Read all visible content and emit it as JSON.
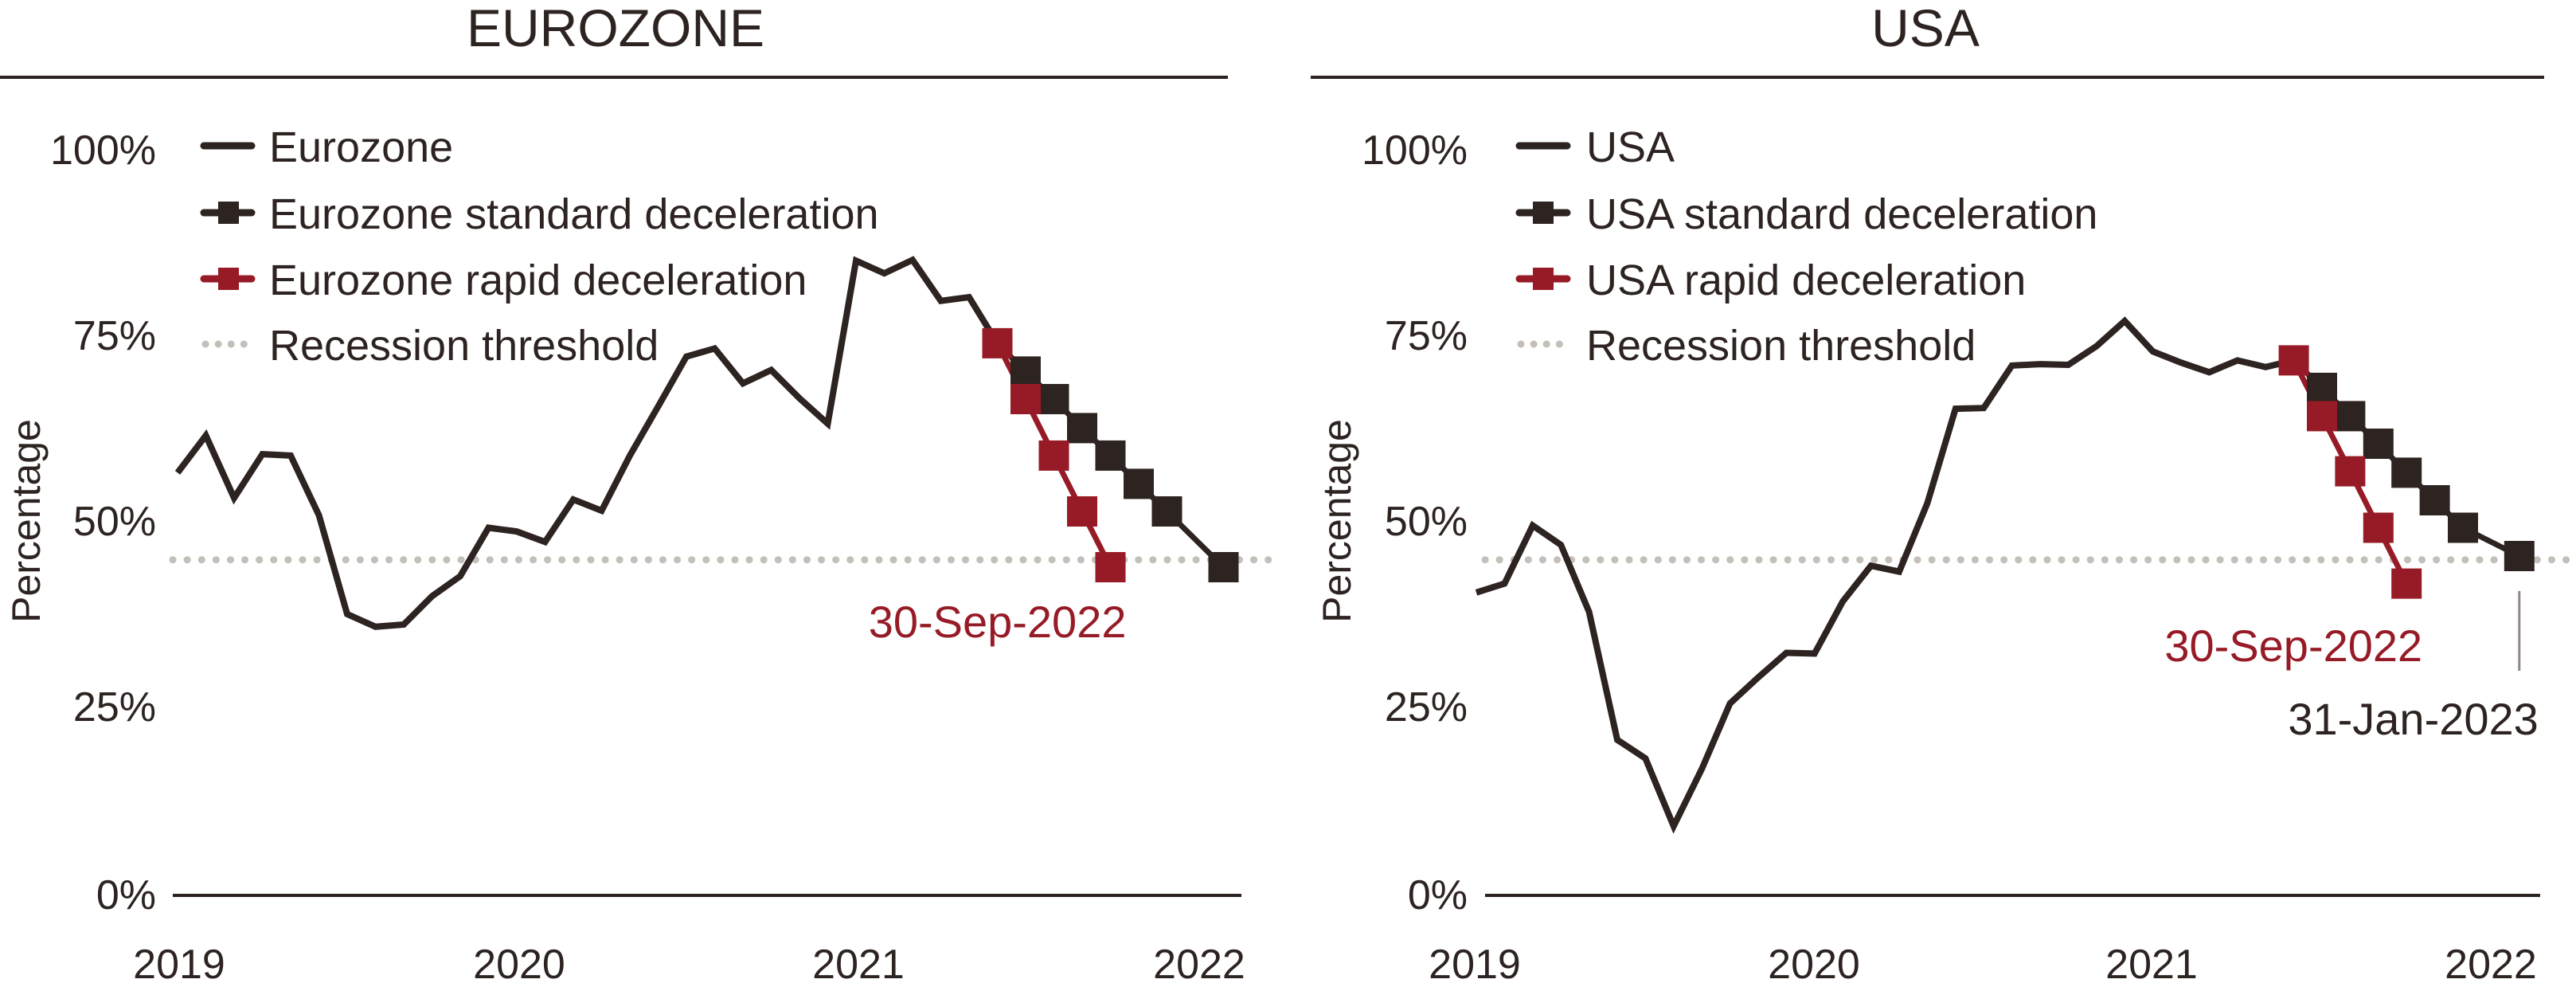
{
  "colors": {
    "line": "#2d2321",
    "rapid": "#971b26",
    "standard": "#2d2321",
    "threshold": "#c4bfb8",
    "text": "#2d2321"
  },
  "chart_data": [
    {
      "type": "line",
      "title": "EUROZONE",
      "xlabel": "",
      "ylabel": "Percentage",
      "ylim": [
        0,
        100
      ],
      "yticks": [
        "0%",
        "25%",
        "50%",
        "75%",
        "100%"
      ],
      "ytick_values": [
        0,
        25,
        50,
        75,
        100
      ],
      "xticks": [
        "2019",
        "2020",
        "2021",
        "2022"
      ],
      "x_unit": "month index (0 = first month at 2019 tick, 12 months per year tick)",
      "xlim": [
        0,
        38
      ],
      "grid": false,
      "legend_position": "top-left",
      "legend": [
        "Eurozone",
        "Eurozone standard deceleration",
        "Eurozone rapid deceleration",
        "Recession threshold"
      ],
      "threshold": 45,
      "series": [
        {
          "name": "Eurozone",
          "style": "line",
          "x": [
            0,
            1,
            2,
            3,
            4,
            5,
            6,
            7,
            8,
            9,
            10,
            11,
            12,
            13,
            14,
            15,
            16,
            17,
            18,
            19,
            20,
            21,
            22,
            23,
            24,
            25,
            26,
            27,
            28,
            29
          ],
          "values": [
            56.7,
            61.7,
            53.3,
            59.2,
            59.0,
            51.0,
            37.7,
            36.0,
            36.3,
            40.1,
            42.8,
            49.3,
            48.8,
            47.4,
            53.1,
            51.6,
            59.0,
            65.6,
            72.3,
            73.4,
            68.7,
            70.5,
            66.7,
            63.3,
            85.2,
            83.5,
            85.3,
            79.8,
            80.3,
            74.1
          ]
        },
        {
          "name": "Eurozone standard deceleration",
          "style": "line-square",
          "x": [
            29,
            30,
            31,
            32,
            33,
            34,
            35,
            37
          ],
          "values": [
            74.1,
            70.3,
            66.6,
            62.7,
            59.0,
            55.2,
            51.5,
            44.0
          ],
          "markers_at": [
            30,
            31,
            32,
            33,
            34,
            35,
            37
          ]
        },
        {
          "name": "Eurozone rapid deceleration",
          "style": "line-square",
          "x": [
            29,
            30,
            31,
            32,
            33
          ],
          "values": [
            74.1,
            66.6,
            59.0,
            51.5,
            44.0
          ],
          "markers_at": [
            29,
            30,
            31,
            32,
            33
          ]
        }
      ],
      "annotations": [
        {
          "text": "30-Sep-2022",
          "color": "rapid",
          "x": 33
        }
      ]
    },
    {
      "type": "line",
      "title": "USA",
      "xlabel": "",
      "ylabel": "Percentage",
      "ylim": [
        0,
        100
      ],
      "yticks": [
        "0%",
        "25%",
        "50%",
        "75%",
        "100%"
      ],
      "ytick_values": [
        0,
        25,
        50,
        75,
        100
      ],
      "xticks": [
        "2019",
        "2020",
        "2021",
        "2022"
      ],
      "x_unit": "month index (0 = first month at 2019 tick, 12 months per year tick)",
      "xlim": [
        0,
        38
      ],
      "grid": false,
      "legend_position": "top-left",
      "legend": [
        "USA",
        "USA standard deceleration",
        "USA rapid deceleration",
        "Recession threshold"
      ],
      "threshold": 45,
      "series": [
        {
          "name": "USA",
          "style": "line",
          "x": [
            0,
            1,
            2,
            3,
            4,
            5,
            6,
            7,
            8,
            9,
            10,
            11,
            12,
            13,
            14,
            15,
            16,
            17,
            18,
            19,
            20,
            21,
            22,
            23,
            24,
            25,
            26,
            27,
            28,
            29
          ],
          "values": [
            40.6,
            41.8,
            49.6,
            47.0,
            38.0,
            20.8,
            18.3,
            9.2,
            16.9,
            25.7,
            29.2,
            32.5,
            32.4,
            39.4,
            44.2,
            43.4,
            52.6,
            65.3,
            65.4,
            71.1,
            71.3,
            71.2,
            73.7,
            77.1,
            73.0,
            71.5,
            70.2,
            71.8,
            70.9,
            71.8
          ]
        },
        {
          "name": "USA standard deceleration",
          "style": "line-square",
          "x": [
            29,
            30,
            31,
            32,
            33,
            34,
            35,
            37
          ],
          "values": [
            71.8,
            68.1,
            64.3,
            60.6,
            56.7,
            53.0,
            49.3,
            45.5
          ],
          "markers_at": [
            30,
            31,
            32,
            33,
            34,
            35,
            37
          ]
        },
        {
          "name": "USA rapid deceleration",
          "style": "line-square",
          "x": [
            29,
            30,
            31,
            32,
            33
          ],
          "values": [
            71.8,
            64.3,
            56.9,
            49.3,
            41.8
          ],
          "markers_at": [
            29,
            30,
            31,
            32,
            33
          ]
        }
      ],
      "annotations": [
        {
          "text": "30-Sep-2022",
          "color": "rapid",
          "x": 33
        },
        {
          "text": "31-Jan-2023",
          "color": "line",
          "x": 37,
          "leader_line": true
        }
      ]
    }
  ]
}
